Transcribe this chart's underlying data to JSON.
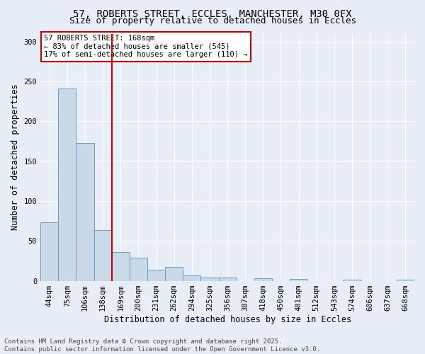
{
  "title_line1": "57, ROBERTS STREET, ECCLES, MANCHESTER, M30 0FX",
  "title_line2": "Size of property relative to detached houses in Eccles",
  "xlabel": "Distribution of detached houses by size in Eccles",
  "ylabel": "Number of detached properties",
  "categories": [
    "44sqm",
    "75sqm",
    "106sqm",
    "138sqm",
    "169sqm",
    "200sqm",
    "231sqm",
    "262sqm",
    "294sqm",
    "325sqm",
    "356sqm",
    "387sqm",
    "418sqm",
    "450sqm",
    "481sqm",
    "512sqm",
    "543sqm",
    "574sqm",
    "606sqm",
    "637sqm",
    "668sqm"
  ],
  "values": [
    73,
    241,
    173,
    64,
    36,
    29,
    14,
    17,
    7,
    4,
    4,
    0,
    3,
    0,
    2,
    0,
    0,
    1,
    0,
    0,
    1
  ],
  "bar_color": "#c9d9e8",
  "bar_edge_color": "#6b9dc8",
  "bar_linewidth": 0.7,
  "vline_x_index": 3.5,
  "vline_color": "#cc0000",
  "annotation_box_text": "57 ROBERTS STREET: 168sqm\n← 83% of detached houses are smaller (545)\n17% of semi-detached houses are larger (110) →",
  "ylim": [
    0,
    310
  ],
  "yticks": [
    0,
    50,
    100,
    150,
    200,
    250,
    300
  ],
  "bg_color": "#e8eef8",
  "plot_bg_color": "#e8eef8",
  "grid_color": "#ffffff",
  "footer_line1": "Contains HM Land Registry data © Crown copyright and database right 2025.",
  "footer_line2": "Contains public sector information licensed under the Open Government Licence v3.0.",
  "title_fontsize": 10,
  "subtitle_fontsize": 9,
  "axis_label_fontsize": 8.5,
  "tick_fontsize": 7.5,
  "annotation_fontsize": 7.5,
  "footer_fontsize": 6.5
}
